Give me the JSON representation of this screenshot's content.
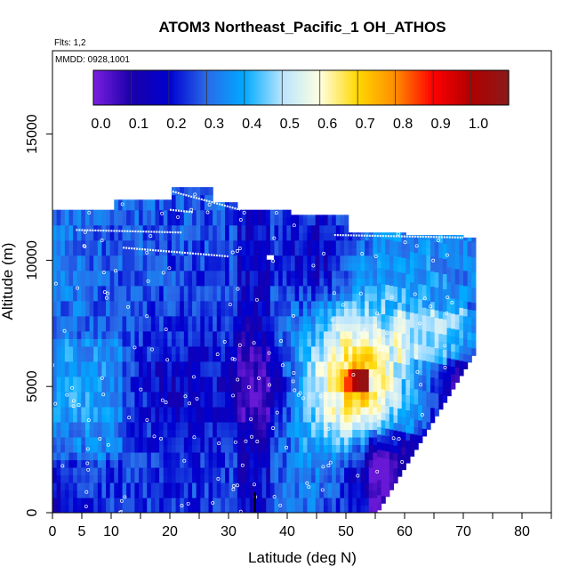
{
  "chart_data": {
    "type": "heatmap",
    "title": "ATOM3 Northeast_Pacific_1 OH_ATHOS",
    "annotations": [
      "Flts: 1,2",
      "MMDD: 0928,1001"
    ],
    "xlabel": "Latitude (deg N)",
    "ylabel": "Altitude (m)",
    "xlim": [
      0,
      85
    ],
    "ylim": [
      0,
      18000
    ],
    "x_ticks": [
      0,
      5,
      10,
      20,
      30,
      40,
      50,
      60,
      70,
      80
    ],
    "y_ticks": [
      0,
      5000,
      10000,
      15000
    ],
    "y_tick_labels": [
      "0",
      "5000",
      "10000",
      "15000"
    ],
    "colorbar": {
      "ticks": [
        0.0,
        0.1,
        0.2,
        0.3,
        0.4,
        0.5,
        0.6,
        0.7,
        0.8,
        0.9,
        1.0
      ],
      "tick_labels": [
        "0.0",
        "0.1",
        "0.2",
        "0.3",
        "0.4",
        "0.5",
        "0.6",
        "0.7",
        "0.8",
        "0.9",
        "1.0"
      ],
      "range": [
        -0.02,
        1.08
      ],
      "colors": [
        "#7b1fe0",
        "#1a00a8",
        "#0000d0",
        "#2a6ae8",
        "#00aaff",
        "#b8e4ff",
        "#ffffe0",
        "#ffd800",
        "#ff8c00",
        "#ff0000",
        "#b00000",
        "#8b1a1a"
      ]
    },
    "values": [
      {
        "lat": 0,
        "alt": 0,
        "value": 0.14
      },
      {
        "lat": 0,
        "alt": 5000,
        "value": 0.3
      },
      {
        "lat": 0,
        "alt": 10000,
        "value": 0.32
      },
      {
        "lat": 5,
        "alt": 5000,
        "value": 0.33
      },
      {
        "lat": 10,
        "alt": 10000,
        "value": 0.26
      },
      {
        "lat": 20,
        "alt": 5000,
        "value": 0.14
      },
      {
        "lat": 35,
        "alt": 5000,
        "value": 0.05
      },
      {
        "lat": 45,
        "alt": 10000,
        "value": 0.12
      },
      {
        "lat": 50,
        "alt": 5200,
        "value": 0.55
      },
      {
        "lat": 52,
        "alt": 5200,
        "value": 0.95
      },
      {
        "lat": 55,
        "alt": 1500,
        "value": 0.03
      },
      {
        "lat": 65,
        "alt": 7000,
        "value": 0.4
      },
      {
        "lat": 70,
        "alt": 5000,
        "value": 0.01
      }
    ]
  }
}
